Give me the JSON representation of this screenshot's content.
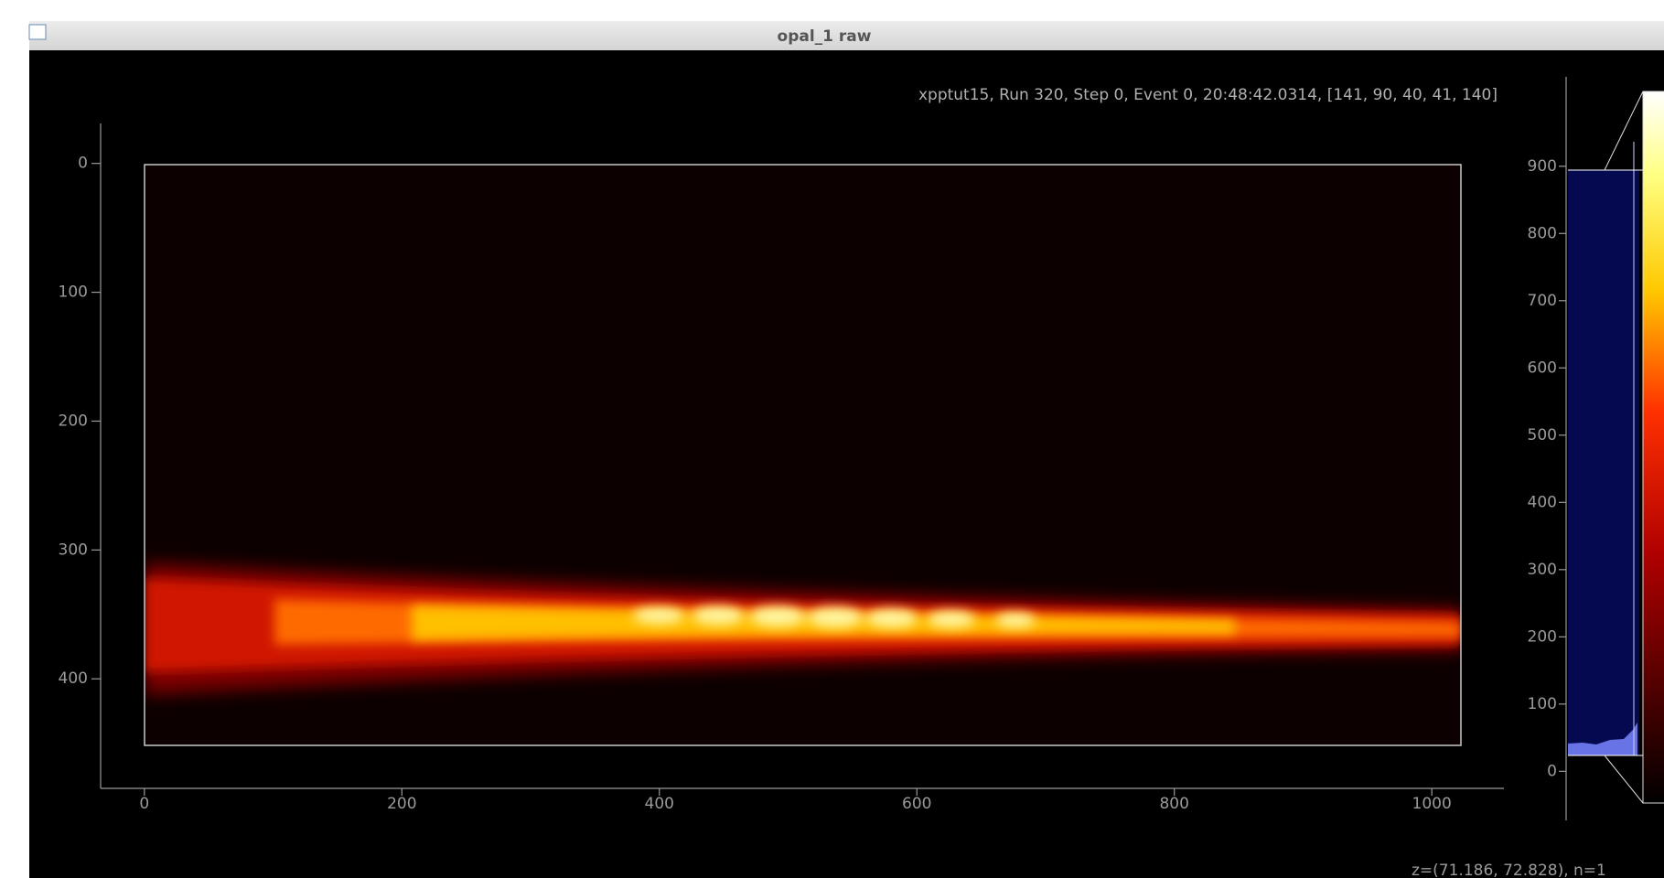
{
  "window": {
    "title": "opal_1 raw"
  },
  "header": "xpptut15, Run 320, Step 0, Event 0, 20:48:42.0314, [141, 90, 40, 41, 140]",
  "image_plot": {
    "xlim": [
      -34,
      1056
    ],
    "ylim": [
      -31,
      485
    ],
    "xticks": [
      0,
      200,
      400,
      600,
      800,
      1000
    ],
    "yticks": [
      0,
      100,
      200,
      300,
      400
    ]
  },
  "histogram": {
    "ylim": [
      -73,
      1033
    ],
    "yticks": [
      0,
      100,
      200,
      300,
      400,
      500,
      600,
      700,
      800,
      900
    ]
  },
  "status": "z=(71.186, 72.828), n=1"
}
